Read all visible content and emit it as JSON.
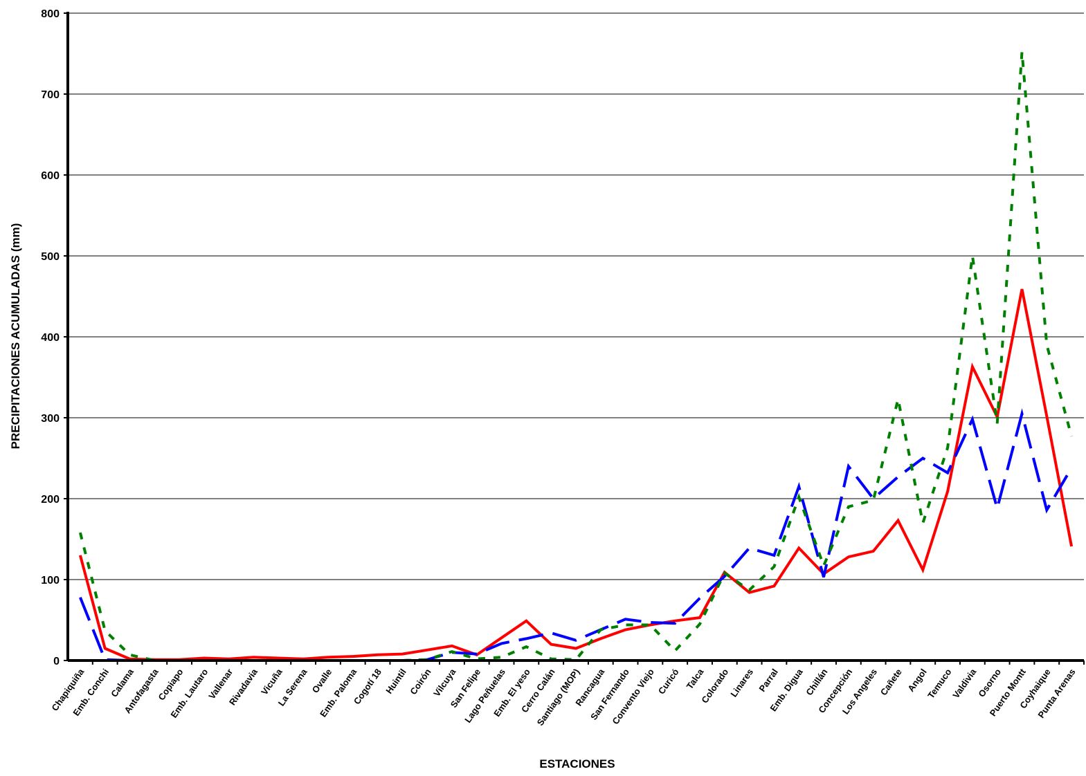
{
  "chart_data": {
    "type": "line",
    "xlabel": "ESTACIONES",
    "ylabel": "PRECIPITACIONES ACUMULADAS (mm)",
    "ylim": [
      0,
      800
    ],
    "yticks": [
      0,
      100,
      200,
      300,
      400,
      500,
      600,
      700,
      800
    ],
    "grid": true,
    "legend": "none",
    "categories": [
      "Chapiquiña",
      "Emb. Conchi",
      "Calama",
      "Antofagasta",
      "Copiapo",
      "Emb. Lautaro",
      "Vallenar",
      "Rivadavia",
      "Vicuña",
      "La Serena",
      "Ovalle",
      "Emb. Paloma",
      "Cogotí 18",
      "Huintil",
      "Coirón",
      "Vilcuya",
      "San Felipe",
      "Lago Peñuelas",
      "Emb. El yeso",
      "Cerro Calán",
      "Santiago (MOP)",
      "Rancagua",
      "San Fernando",
      "Convento Viejo",
      "Curicó",
      "Talca",
      "Colorado",
      "Linares",
      "Parral",
      "Emb. Digua",
      "Chillán",
      "Concepción",
      "Los Angeles",
      "Cañete",
      "Angol",
      "Temuco",
      "Valdivia",
      "Osorno",
      "Puerto Montt",
      "Coyhaique",
      "Punta Arenas"
    ],
    "series": [
      {
        "color": "#ff0000",
        "style": "solid",
        "values": [
          130,
          15,
          2,
          1,
          1,
          3,
          2,
          4,
          3,
          2,
          4,
          5,
          7,
          8,
          13,
          18,
          7,
          28,
          49,
          20,
          15,
          27,
          38,
          44,
          49,
          53,
          109,
          84,
          92,
          139,
          107,
          128,
          135,
          173,
          112,
          209,
          363,
          301,
          459,
          302,
          141
        ]
      },
      {
        "color": "#0000ff",
        "style": "dashed",
        "values": [
          78,
          1,
          0,
          0,
          0,
          0,
          0,
          0,
          0,
          0,
          0,
          0,
          0,
          0,
          1,
          10,
          8,
          21,
          27,
          34,
          25,
          38,
          51,
          47,
          46,
          77,
          104,
          139,
          130,
          215,
          103,
          240,
          200,
          227,
          250,
          232,
          298,
          188,
          305,
          186,
          238
        ]
      },
      {
        "color": "#008000",
        "style": "dotted",
        "values": [
          158,
          37,
          7,
          0,
          0,
          0,
          0,
          0,
          0,
          0,
          0,
          0,
          0,
          0,
          1,
          11,
          2,
          4,
          17,
          2,
          1,
          38,
          44,
          44,
          12,
          45,
          108,
          87,
          116,
          202,
          117,
          190,
          198,
          323,
          170,
          263,
          500,
          293,
          752,
          390,
          277
        ]
      }
    ]
  }
}
